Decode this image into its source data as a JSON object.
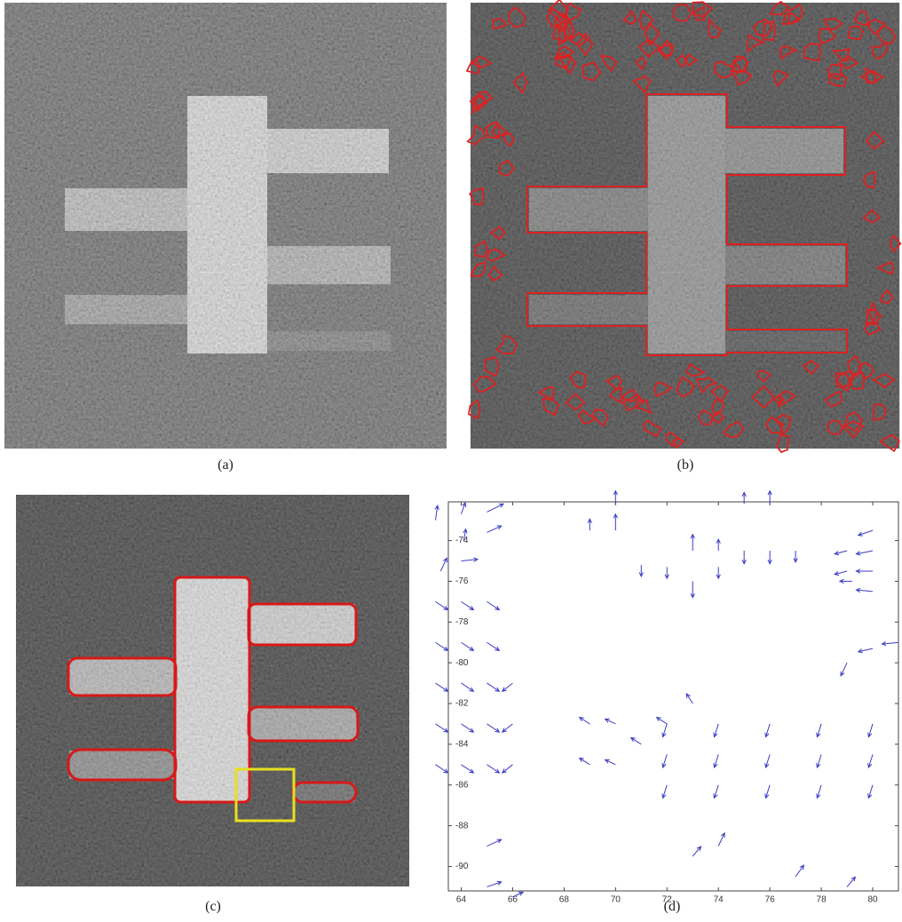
{
  "captions": [
    "(a)",
    "(b)",
    "(c)",
    "(d)"
  ],
  "chart_data": {
    "type": "quiver",
    "color": "#3b3bc4",
    "xlim": [
      63.5,
      81
    ],
    "ylim": [
      -91.2,
      -72.1
    ],
    "xticks": [
      64,
      66,
      68,
      70,
      72,
      74,
      76,
      78,
      80
    ],
    "yticks": [
      -74,
      -76,
      -78,
      -80,
      -82,
      -84,
      -86,
      -88,
      -90
    ],
    "x": [
      63,
      64,
      65,
      64.1,
      65,
      63.2,
      64,
      63,
      64,
      65,
      63,
      64,
      65,
      63,
      64,
      65,
      63,
      64,
      65,
      63,
      64,
      65,
      66,
      66,
      66,
      69,
      70,
      70,
      71,
      72,
      73,
      73,
      74,
      74,
      75,
      75,
      76,
      76,
      77,
      80,
      80,
      80,
      80,
      79,
      79,
      79.2,
      79,
      80,
      81,
      69,
      69,
      70,
      70,
      71,
      72,
      73,
      72,
      74,
      76,
      78,
      80,
      72,
      74,
      76,
      78,
      80,
      72,
      74,
      76,
      78,
      80,
      65,
      65,
      66,
      73,
      74,
      77,
      79
    ],
    "y": [
      -73,
      -72.7,
      -72.6,
      -74,
      -73.6,
      -75.5,
      -75,
      -77,
      -77,
      -77,
      -79,
      -79,
      -79,
      -81,
      -81,
      -81,
      -83,
      -83,
      -83,
      -85,
      -85,
      -85,
      -81,
      -83,
      -85,
      -73.5,
      -73.5,
      -72.2,
      -75.2,
      -75.3,
      -74.5,
      -76,
      -74.5,
      -75.3,
      -72.2,
      -74.5,
      -72.2,
      -74.5,
      -74.5,
      -73.5,
      -74.5,
      -75.5,
      -76.5,
      -74.5,
      -75.5,
      -76,
      -80,
      -79.3,
      -79,
      -83,
      -85,
      -83,
      -85,
      -84,
      -83,
      -82,
      -83,
      -83,
      -83,
      -83,
      -83,
      -84.5,
      -84.5,
      -84.5,
      -84.5,
      -84.5,
      -86,
      -86,
      -86,
      -86,
      -86,
      -89,
      -91,
      -91.5,
      -89.5,
      -89,
      -90.5,
      -91
    ],
    "u": [
      0.1,
      0.2,
      0.8,
      0.1,
      0.7,
      0.3,
      0.8,
      0.6,
      0.6,
      0.6,
      0.6,
      0.6,
      0.6,
      0.6,
      0.6,
      0.6,
      0.6,
      0.6,
      0.6,
      0.6,
      0.6,
      0.6,
      -0.5,
      -0.5,
      -0.5,
      0,
      0,
      0,
      0,
      0,
      0,
      0,
      0,
      0,
      0,
      0,
      0,
      0,
      0,
      -0.7,
      -0.8,
      -0.8,
      -0.8,
      -0.6,
      -0.6,
      -0.6,
      -0.3,
      -0.7,
      -0.8,
      -0.5,
      -0.5,
      -0.5,
      -0.5,
      -0.5,
      -0.5,
      -0.3,
      -0.2,
      -0.2,
      -0.2,
      -0.2,
      -0.2,
      -0.2,
      -0.2,
      -0.2,
      -0.2,
      -0.2,
      -0.2,
      -0.2,
      -0.2,
      -0.2,
      -0.2,
      0.7,
      0.7,
      0.5,
      0.4,
      0.3,
      0.4,
      0.4
    ],
    "v": [
      0.9,
      0.7,
      0.5,
      0.7,
      0.4,
      0.8,
      0.1,
      -0.5,
      -0.5,
      -0.5,
      -0.5,
      -0.5,
      -0.5,
      -0.5,
      -0.5,
      -0.5,
      -0.5,
      -0.5,
      -0.5,
      -0.5,
      -0.5,
      -0.5,
      -0.5,
      -0.5,
      -0.5,
      0.7,
      1,
      0.8,
      -0.7,
      -0.7,
      1,
      -1,
      0.7,
      -0.7,
      0.7,
      -0.8,
      0.8,
      -0.8,
      -0.7,
      -0.3,
      -0.2,
      0,
      0.1,
      -0.2,
      -0.2,
      0,
      -0.8,
      -0.2,
      -0.1,
      0.4,
      0.4,
      0.3,
      0.3,
      0.4,
      0.4,
      0.6,
      -0.8,
      -0.8,
      -0.8,
      -0.8,
      -0.8,
      -0.8,
      -0.8,
      -0.8,
      -0.8,
      -0.8,
      -0.8,
      -0.8,
      -0.8,
      -0.8,
      -0.8,
      0.4,
      0.3,
      0.3,
      0.6,
      0.8,
      0.7,
      0.6
    ]
  }
}
